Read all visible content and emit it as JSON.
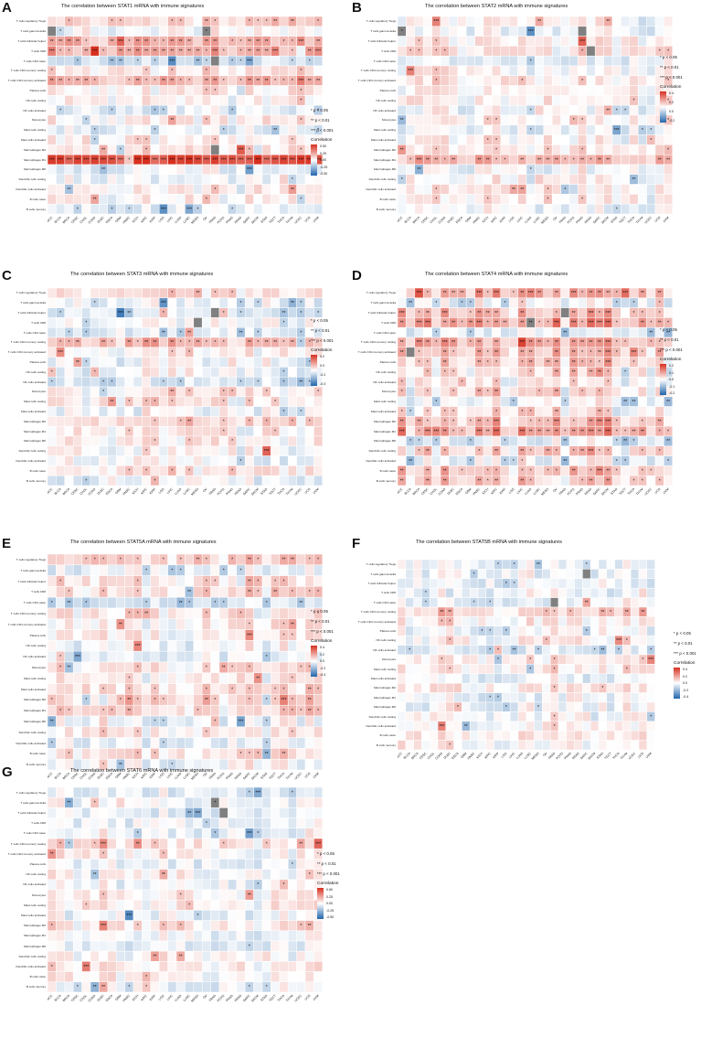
{
  "figure": {
    "panels": [
      {
        "letter": "A",
        "title": "The correlation between STAT1 mRNA with immune signatures"
      },
      {
        "letter": "B",
        "title": "The correlation between STAT2 mRNA with immune signatures"
      },
      {
        "letter": "C",
        "title": "The correlation between STAT3 mRNA with immune signatures"
      },
      {
        "letter": "D",
        "title": "The correlation between STAT4 mRNA with immune signatures"
      },
      {
        "letter": "E",
        "title": "The correlation between STAT5A mRNA with immune signatures"
      },
      {
        "letter": "F",
        "title": "The correlation between STAT5B mRNA with immune signatures"
      },
      {
        "letter": "G",
        "title": "The correlation between STAT6 mRNA with immune signatures"
      }
    ],
    "signatures": [
      "T cells regulatory Tregs",
      "T cells gamma delta",
      "T cells follicular helper",
      "T cells CD8",
      "T cells CD4 naive",
      "T cells CD4 memory resting",
      "T cells CD4 memory activated",
      "Plasma cells",
      "NK cells resting",
      "NK cells activated",
      "Monocytes",
      "Mast cells resting",
      "Mast cells activated",
      "Macrophages M2",
      "Macrophages M1",
      "Macrophages M0",
      "Dendritic cells resting",
      "Dendritic cells activated",
      "B cells naive",
      "B cells memory"
    ],
    "cancers": [
      "ACC",
      "BLCA",
      "BRCA",
      "CESC",
      "CHOL",
      "COAD",
      "DLBC",
      "ESCA",
      "GBM",
      "HNSC",
      "KICH",
      "KIRC",
      "KIRP",
      "LGG",
      "LIHC",
      "LUAD",
      "LUSC",
      "MESO",
      "OV",
      "PAAD",
      "PCPG",
      "PRAD",
      "READ",
      "SARC",
      "SKCM",
      "STAD",
      "TGCT",
      "THCA",
      "THYM",
      "UCEC",
      "UCS",
      "UVM"
    ],
    "legend": {
      "sig1": "* p < 0.05",
      "sig2": "** p < 0.01",
      "sig3": "*** p < 0.001",
      "title": "Correlation",
      "ticks_A": [
        "0.50",
        "0.25",
        "0.00",
        "-0.25",
        "-0.50"
      ],
      "ticks_B": [
        "0.4",
        "0.2",
        "0.0",
        "-0.2"
      ],
      "ticks_C": [
        "0.2",
        "0.0",
        "-0.2",
        "-0.4"
      ],
      "ticks_D": [
        "0.2",
        "0.1",
        "0.0",
        "-0.1",
        "-0.2"
      ],
      "ticks_E": [
        "0.4",
        "0.2",
        "0.0",
        "-0.2",
        "-0.4"
      ],
      "ticks_F": [
        "0.4",
        "0.2",
        "0.0",
        "-0.2",
        "-0.4"
      ],
      "ticks_G": [
        "0.50",
        "0.25",
        "0.00",
        "-0.25",
        "-0.50"
      ]
    },
    "colors": {
      "positive": "#d7301f",
      "negative": "#2166ac",
      "neutral": "#ffffff",
      "missing": "#808080"
    }
  },
  "chart_data": [
    {
      "type": "heatmap",
      "panel": "A",
      "title": "The correlation between STAT1 mRNA with immune signatures",
      "rows": "signatures",
      "columns": "cancers",
      "value_range": [
        -0.5,
        0.5
      ],
      "row_profile": [
        0.12,
        -0.02,
        0.18,
        0.22,
        -0.1,
        0.06,
        0.2,
        0.04,
        0.03,
        -0.08,
        0.05,
        -0.06,
        0.04,
        0.06,
        0.42,
        -0.04,
        -0.03,
        0.05,
        0.02,
        -0.06
      ]
    },
    {
      "type": "heatmap",
      "panel": "B",
      "title": "The correlation between STAT2 mRNA with immune signatures",
      "rows": "signatures",
      "columns": "cancers",
      "value_range": [
        -0.3,
        0.5
      ],
      "row_profile": [
        0.02,
        -0.04,
        0.04,
        0.06,
        -0.06,
        0.03,
        0.05,
        0.02,
        0.02,
        -0.02,
        0.02,
        -0.04,
        0.02,
        0.05,
        0.18,
        -0.02,
        0.01,
        0.03,
        0.02,
        -0.03
      ]
    },
    {
      "type": "heatmap",
      "panel": "C",
      "title": "The correlation between STAT3 mRNA with immune signatures",
      "rows": "signatures",
      "columns": "cancers",
      "value_range": [
        -0.4,
        0.3
      ],
      "row_profile": [
        0.06,
        -0.04,
        -0.06,
        -0.02,
        -0.08,
        0.12,
        0.02,
        -0.02,
        -0.03,
        -0.08,
        0.05,
        0.04,
        -0.02,
        0.08,
        0.04,
        0.03,
        0.01,
        -0.02,
        0.06,
        -0.04
      ]
    },
    {
      "type": "heatmap",
      "panel": "D",
      "title": "The correlation between STAT4 mRNA with immune signatures",
      "rows": "signatures",
      "columns": "cancers",
      "value_range": [
        -0.25,
        0.25
      ],
      "row_profile": [
        0.08,
        -0.03,
        0.06,
        0.1,
        -0.04,
        0.08,
        0.06,
        0.05,
        0.02,
        0.01,
        0.03,
        -0.03,
        0.02,
        0.06,
        0.1,
        -0.05,
        0.05,
        -0.03,
        0.06,
        0.04
      ]
    },
    {
      "type": "heatmap",
      "panel": "E",
      "title": "The correlation between STAT5A mRNA with immune signatures",
      "rows": "signatures",
      "columns": "cancers",
      "value_range": [
        -0.4,
        0.4
      ],
      "row_profile": [
        0.1,
        -0.04,
        0.06,
        0.08,
        -0.08,
        0.06,
        0.04,
        0.02,
        -0.02,
        -0.04,
        0.06,
        0.03,
        0.06,
        0.1,
        0.08,
        -0.03,
        0.04,
        -0.04,
        0.06,
        -0.02
      ]
    },
    {
      "type": "heatmap",
      "panel": "F",
      "title": "The correlation between STAT5B mRNA with immune signatures",
      "rows": "signatures",
      "columns": "cancers",
      "value_range": [
        -0.4,
        0.4
      ],
      "row_profile": [
        -0.03,
        -0.02,
        -0.03,
        -0.02,
        -0.03,
        0.1,
        0.04,
        -0.02,
        0.03,
        -0.06,
        0.04,
        0.05,
        -0.03,
        0.05,
        -0.02,
        -0.02,
        0.01,
        0.03,
        0.04,
        0.02
      ]
    },
    {
      "type": "heatmap",
      "panel": "G",
      "title": "The correlation between STAT6 mRNA with immune signatures",
      "rows": "signatures",
      "columns": "cancers",
      "value_range": [
        -0.5,
        0.5
      ],
      "row_profile": [
        -0.06,
        -0.03,
        -0.05,
        -0.03,
        -0.03,
        0.08,
        0.02,
        -0.02,
        0.02,
        -0.03,
        0.04,
        0.04,
        -0.04,
        0.06,
        -0.03,
        -0.05,
        0.02,
        0.05,
        0.03,
        -0.04
      ]
    }
  ]
}
